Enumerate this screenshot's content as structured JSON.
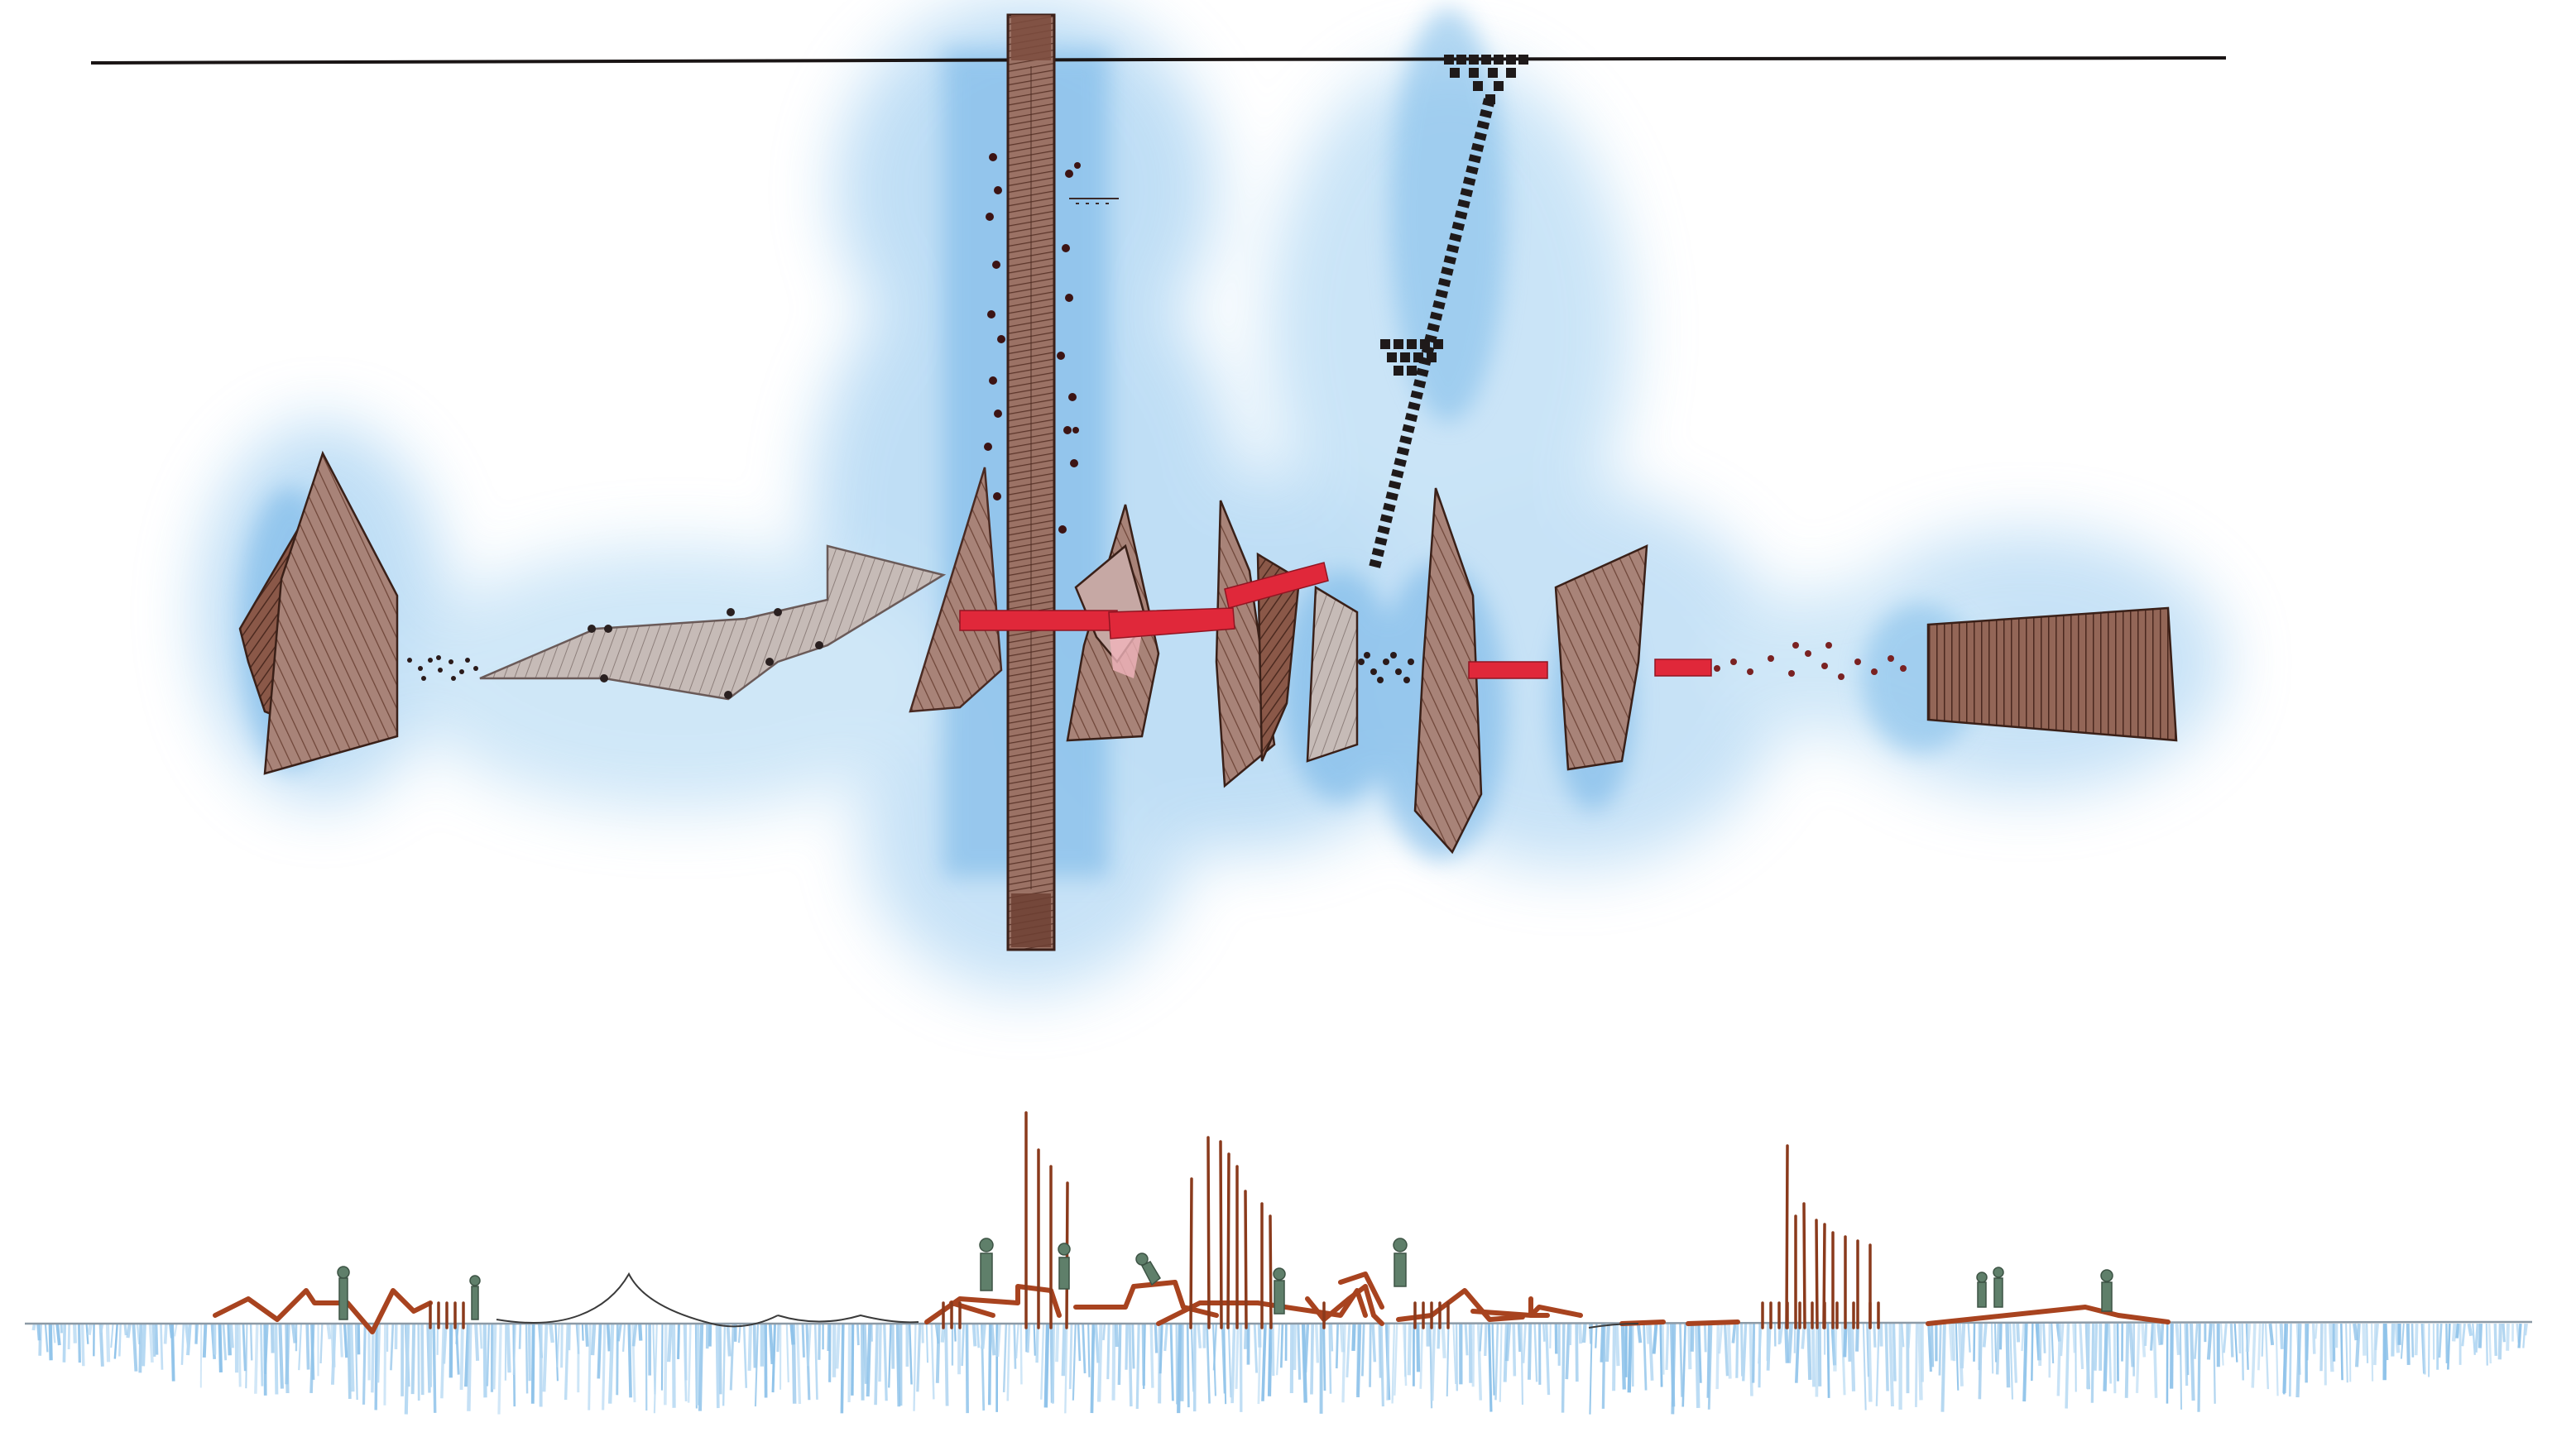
{
  "drawing": {
    "kind": "hand-drawn architectural plan and section sketch",
    "palette": {
      "paper": "#ffffff",
      "water_wash": "#6fb2e6",
      "water_wash_light": "#b9dcf5",
      "mass_brown": "#6e3f30",
      "mass_grey": "#9a8c88",
      "accent_red": "#e0283a",
      "section_rust": "#a8431f",
      "figure_green": "#5f7f6a",
      "ink": "#2a2020"
    },
    "annotation_text": ""
  }
}
